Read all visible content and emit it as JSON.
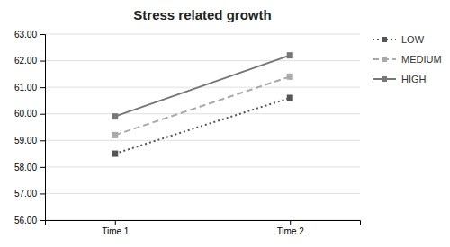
{
  "chart_data": {
    "type": "line",
    "title": "Stress related growth",
    "categories": [
      "Time 1",
      "Time 2"
    ],
    "series": [
      {
        "name": "LOW",
        "color": "#555555",
        "values": [
          58.5,
          60.6
        ],
        "line_style": "dotted",
        "marker": "square"
      },
      {
        "name": "MEDIUM",
        "color": "#aaaaaa",
        "values": [
          59.2,
          61.4
        ],
        "line_style": "dashed",
        "marker": "square"
      },
      {
        "name": "HIGH",
        "color": "#777777",
        "values": [
          59.9,
          62.2
        ],
        "line_style": "solid",
        "marker": "square"
      }
    ],
    "ylim": [
      56.0,
      63.0
    ],
    "yticks": [
      {
        "value": 56,
        "label": "56.00"
      },
      {
        "value": 57,
        "label": "57.00"
      },
      {
        "value": 58,
        "label": "58.00"
      },
      {
        "value": 59,
        "label": "59.00"
      },
      {
        "value": 60,
        "label": "60.00"
      },
      {
        "value": 61,
        "label": "61.00"
      },
      {
        "value": 62,
        "label": "62.00"
      },
      {
        "value": 63,
        "label": "63.00"
      }
    ],
    "grid": true,
    "legend": "right"
  }
}
